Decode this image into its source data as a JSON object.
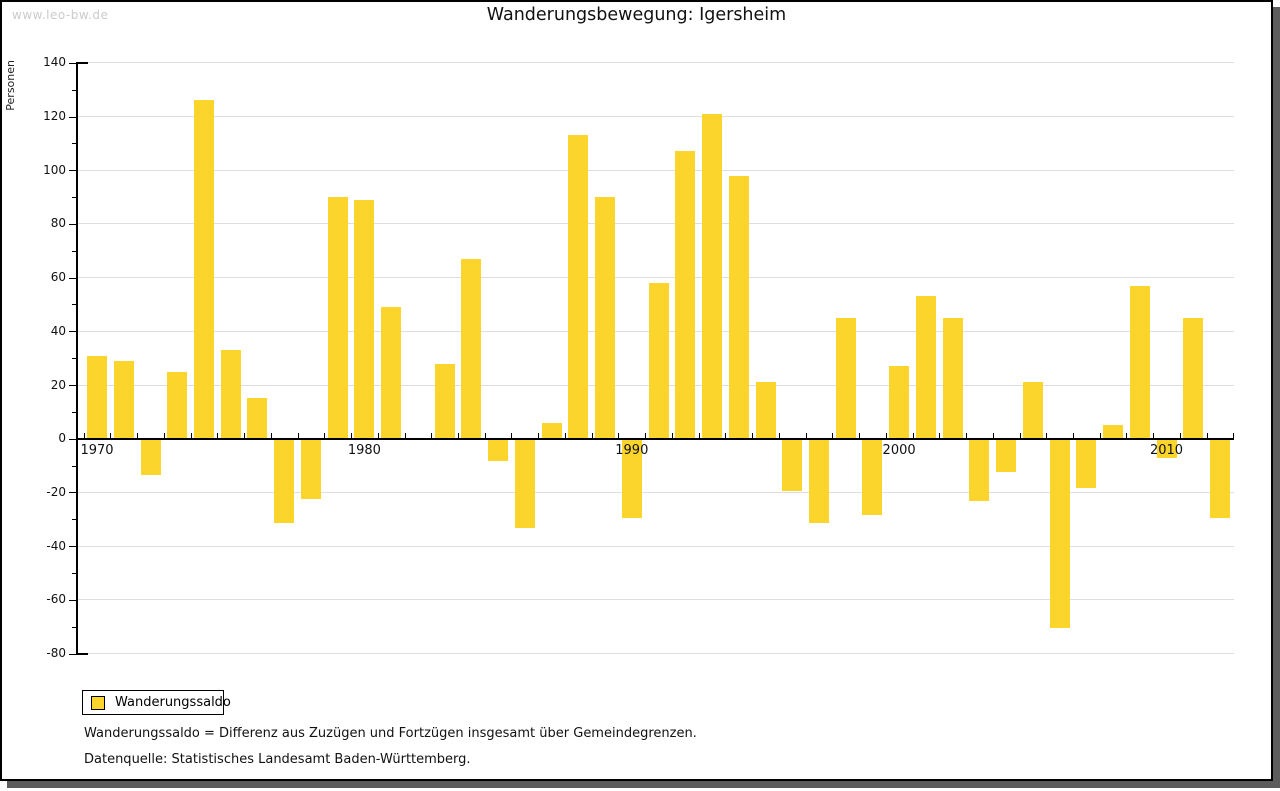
{
  "watermark": "www.leo-bw.de",
  "title": "Wanderungsbewegung: Igersheim",
  "legend": {
    "label": "Wanderungssaldo"
  },
  "footnotes": {
    "line1": "Wanderungssaldo = Differenz aus Zuzügen und Fortzügen insgesamt über Gemeindegrenzen.",
    "line2": "Datenquelle: Statistisches Landesamt Baden-Württemberg."
  },
  "chart_data": {
    "type": "bar",
    "title": "Wanderungsbewegung: Igersheim",
    "xlabel": "",
    "ylabel": "Personen",
    "categories": [
      1970,
      1971,
      1972,
      1973,
      1974,
      1975,
      1976,
      1977,
      1978,
      1979,
      1980,
      1981,
      1982,
      1983,
      1984,
      1985,
      1986,
      1987,
      1988,
      1989,
      1990,
      1991,
      1992,
      1993,
      1994,
      1995,
      1996,
      1997,
      1998,
      1999,
      2000,
      2001,
      2002,
      2003,
      2004,
      2005,
      2006,
      2007,
      2008,
      2009,
      2010,
      2011,
      2012
    ],
    "series": [
      {
        "name": "Wanderungssaldo",
        "values": [
          31,
          29,
          -13,
          25,
          126,
          33,
          15,
          -31,
          -22,
          90,
          89,
          49,
          0,
          28,
          67,
          -8,
          -33,
          6,
          113,
          90,
          -29,
          58,
          107,
          121,
          98,
          21,
          -19,
          -31,
          45,
          -28,
          27,
          53,
          45,
          -23,
          -12,
          21,
          -70,
          -18,
          5,
          57,
          -7,
          45,
          -29
        ]
      }
    ],
    "ylim": [
      -80,
      140
    ],
    "ytick_step": 20,
    "ytick_labels": [
      "140",
      "120",
      "100",
      "80",
      "60",
      "40",
      "20",
      "0",
      "-20",
      "-40",
      "-60",
      "-80"
    ],
    "xtick_labels": [
      "1970",
      "1980",
      "1990",
      "2000",
      "2010"
    ],
    "grid": true,
    "legend_position": "bottom-left",
    "bar_color": "#fbd42c",
    "grid_color": "#dedede",
    "axis_color": "#000000",
    "watermark_color": "#cbcbcb"
  }
}
